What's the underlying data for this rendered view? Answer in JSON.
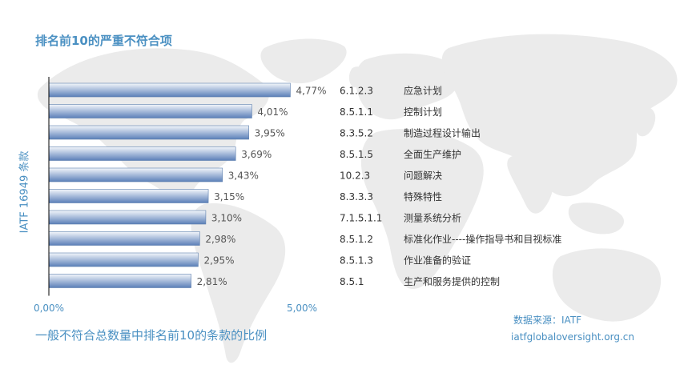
{
  "chart_data": {
    "type": "bar",
    "orientation": "horizontal",
    "title": "排名前10的严重不符合项",
    "xlabel": "一般不符合总数量中排名前10的条款的比例",
    "ylabel": "IATF 16949 条款",
    "xlim": [
      0,
      5
    ],
    "xticks": [
      "0,00%",
      "5,00%"
    ],
    "grid": false,
    "categories": [
      {
        "clause": "6.1.2.3",
        "name": "应急计划"
      },
      {
        "clause": "8.5.1.1",
        "name": "控制计划"
      },
      {
        "clause": "8.3.5.2",
        "name": "制造过程设计输出"
      },
      {
        "clause": "8.5.1.5",
        "name": "全面生产维护"
      },
      {
        "clause": "10.2.3",
        "name": "问题解决"
      },
      {
        "clause": "8.3.3.3",
        "name": "特殊特性"
      },
      {
        "clause": "7.1.5.1.1",
        "name": "测量系统分析"
      },
      {
        "clause": "8.5.1.2",
        "name": "标准化作业----操作指导书和目视标准"
      },
      {
        "clause": "8.5.1.3",
        "name": "作业准备的验证"
      },
      {
        "clause": "8.5.1",
        "name": "生产和服务提供的控制"
      }
    ],
    "values": [
      4.77,
      4.01,
      3.95,
      3.69,
      3.43,
      3.15,
      3.1,
      2.98,
      2.95,
      2.81
    ],
    "value_labels": [
      "4,77%",
      "4,01%",
      "3,95%",
      "3,69%",
      "3,43%",
      "3,15%",
      "3,10%",
      "2,98%",
      "2,95%",
      "2,81%"
    ],
    "colors": {
      "bar_top": "#f3f6fb",
      "bar_bottom": "#5b7fb8",
      "bar_stroke": "#5d7fae",
      "accent_text": "#4a90c2",
      "label_text": "#555555",
      "item_text": "#333333",
      "axis": "#000000",
      "map": "#e9e9e9"
    }
  },
  "source": {
    "line1": "数据来源：IATF",
    "line2": "iatfglobaloversight.org.cn"
  }
}
